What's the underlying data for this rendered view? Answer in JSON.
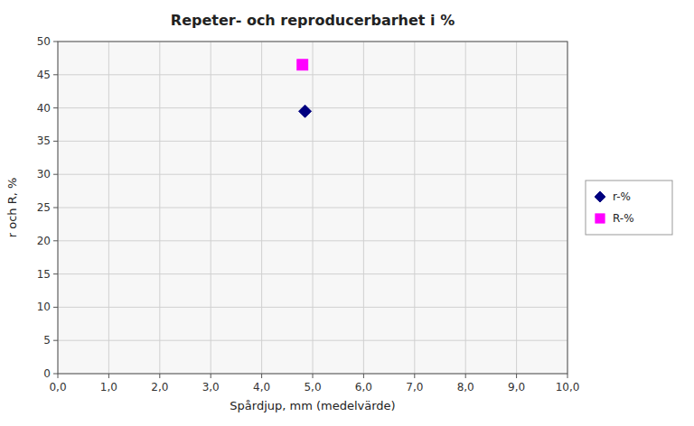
{
  "chart_data": {
    "type": "scatter",
    "title": "Repeter- och reproducerbarhet i %",
    "xlabel": "Spårdjup, mm (medelvärde)",
    "ylabel": "r och R, %",
    "xlim": [
      0.0,
      10.0
    ],
    "ylim": [
      0,
      50
    ],
    "xticks": [
      {
        "value": 0.0,
        "label": "0,0"
      },
      {
        "value": 1.0,
        "label": "1,0"
      },
      {
        "value": 2.0,
        "label": "2,0"
      },
      {
        "value": 3.0,
        "label": "3,0"
      },
      {
        "value": 4.0,
        "label": "4,0"
      },
      {
        "value": 5.0,
        "label": "5,0"
      },
      {
        "value": 6.0,
        "label": "6,0"
      },
      {
        "value": 7.0,
        "label": "7,0"
      },
      {
        "value": 8.0,
        "label": "8,0"
      },
      {
        "value": 9.0,
        "label": "9,0"
      },
      {
        "value": 10.0,
        "label": "10,0"
      }
    ],
    "yticks": [
      0,
      5,
      10,
      15,
      20,
      25,
      30,
      35,
      40,
      45,
      50
    ],
    "grid": true,
    "legend": "right",
    "series": [
      {
        "name": "r-%",
        "color": "#000080",
        "marker": "diamond",
        "x": [
          4.85
        ],
        "values": [
          39.5
        ]
      },
      {
        "name": "R-%",
        "color": "#ff00ff",
        "marker": "square",
        "x": [
          4.8
        ],
        "values": [
          46.5
        ]
      }
    ]
  }
}
